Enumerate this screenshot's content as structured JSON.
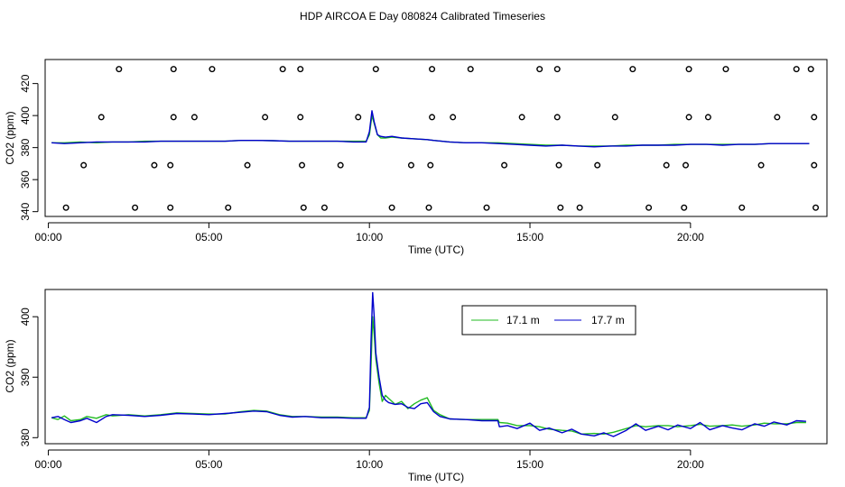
{
  "figure": {
    "title": "HDP AIRCOA E  Day 080824  Calibrated Timeseries"
  },
  "colors": {
    "series_17_1": "#22bb22",
    "series_17_7": "#0000cc",
    "axis": "#000000"
  },
  "chart_data": [
    {
      "type": "line",
      "panel": "top",
      "xlabel": "Time (UTC)",
      "ylabel": "CO2 (ppm)",
      "xlim": [
        -0.1,
        24.25
      ],
      "ylim": [
        337,
        435
      ],
      "xticks": [
        0,
        5,
        10,
        15,
        20
      ],
      "xtick_labels": [
        "00:00",
        "05:00",
        "10:00",
        "15:00",
        "20:00"
      ],
      "yticks": [
        340,
        360,
        380,
        400,
        420
      ],
      "ytick_labels": [
        "340",
        "360",
        "380",
        "400",
        "420"
      ],
      "legend": "none",
      "series": [
        {
          "color": "#22bb22",
          "x": [
            0.1,
            0.5,
            1.0,
            1.5,
            2.0,
            2.5,
            3.0,
            3.5,
            4.0,
            4.5,
            5.0,
            5.5,
            6.0,
            6.5,
            7.0,
            7.5,
            8.0,
            8.5,
            9.0,
            9.5,
            9.9,
            10.0,
            10.08,
            10.15,
            10.25,
            10.35,
            10.5,
            10.7,
            11.0,
            11.4,
            11.8,
            12.0,
            12.5,
            13.0,
            13.5,
            14.0,
            14.5,
            15.0,
            15.5,
            16.0,
            16.5,
            17.0,
            17.5,
            18.0,
            18.5,
            19.0,
            19.5,
            20.0,
            20.5,
            21.0,
            21.5,
            22.0,
            22.5,
            23.0,
            23.5,
            23.7
          ],
          "y": [
            383,
            383,
            383.5,
            383,
            383.5,
            383.5,
            384,
            384,
            384,
            384,
            384,
            384,
            384.5,
            384.5,
            384.3,
            384,
            384,
            384,
            384,
            384,
            384,
            388,
            400,
            395,
            388,
            386,
            386,
            386.5,
            386,
            385.5,
            385,
            384.5,
            383.5,
            383,
            383,
            383,
            382.5,
            382,
            381.5,
            381.5,
            381,
            381,
            381,
            381.5,
            381.5,
            381.5,
            382,
            382,
            382,
            382,
            382,
            382,
            382.5,
            382.5,
            382.5,
            382.5
          ]
        },
        {
          "color": "#0000cc",
          "x": [
            0.1,
            0.5,
            1.0,
            1.5,
            2.0,
            2.5,
            3.0,
            3.5,
            4.0,
            4.5,
            5.0,
            5.5,
            6.0,
            6.5,
            7.0,
            7.5,
            8.0,
            8.5,
            9.0,
            9.5,
            9.9,
            10.0,
            10.08,
            10.15,
            10.25,
            10.35,
            10.5,
            10.7,
            11.0,
            11.4,
            11.8,
            12.0,
            12.5,
            13.0,
            13.5,
            14.0,
            14.5,
            15.0,
            15.5,
            16.0,
            16.5,
            17.0,
            17.5,
            18.0,
            18.5,
            19.0,
            19.5,
            20.0,
            20.5,
            21.0,
            21.5,
            22.0,
            22.5,
            23.0,
            23.5,
            23.7
          ],
          "y": [
            383,
            382.5,
            383,
            383.5,
            383.5,
            383.5,
            383.5,
            384,
            384,
            384,
            384,
            384,
            384.5,
            384.5,
            384.3,
            384,
            384,
            384,
            384,
            383.5,
            383.5,
            390,
            403,
            396,
            388,
            387,
            386.5,
            387,
            386,
            385.5,
            385,
            384.5,
            383.5,
            383,
            383,
            382.5,
            382,
            381.5,
            381,
            381.5,
            381,
            380.5,
            381,
            381,
            381.5,
            381.5,
            381.5,
            382,
            382,
            381.5,
            382,
            382,
            382.5,
            382.5,
            382.5,
            382.5
          ]
        }
      ],
      "calibration_points": {
        "x": [
          2.2,
          3.9,
          5.1,
          7.3,
          7.85,
          10.2,
          11.95,
          13.15,
          15.3,
          15.85,
          18.2,
          19.95,
          21.1,
          23.3,
          23.75,
          1.65,
          3.9,
          4.55,
          6.75,
          7.85,
          9.65,
          11.95,
          12.6,
          14.75,
          15.85,
          17.65,
          19.95,
          20.55,
          22.7,
          23.85,
          1.1,
          3.3,
          3.8,
          6.2,
          7.9,
          9.1,
          11.3,
          11.9,
          14.2,
          15.9,
          17.1,
          19.25,
          19.85,
          22.2,
          23.85,
          0.55,
          2.7,
          3.8,
          5.6,
          7.95,
          8.6,
          10.7,
          11.85,
          13.65,
          15.95,
          16.55,
          18.7,
          19.8,
          21.6,
          23.9
        ],
        "y": [
          429,
          429,
          429,
          429,
          429,
          429,
          429,
          429,
          429,
          429,
          429,
          429,
          429,
          429,
          429,
          399,
          399,
          399,
          399,
          399,
          399,
          399,
          399,
          399,
          399,
          399,
          399,
          399,
          399,
          399,
          369,
          369,
          369,
          369,
          369,
          369,
          369,
          369,
          369,
          369,
          369,
          369,
          369,
          369,
          369,
          342.5,
          342.5,
          342.5,
          342.5,
          342.5,
          342.5,
          342.5,
          342.5,
          342.5,
          342.5,
          342.5,
          342.5,
          342.5,
          342.5,
          342.5
        ]
      }
    },
    {
      "type": "line",
      "panel": "bottom",
      "xlabel": "Time (UTC)",
      "ylabel": "CO2 (ppm)",
      "xlim": [
        -0.1,
        24.25
      ],
      "ylim": [
        379,
        404.5
      ],
      "xticks": [
        0,
        5,
        10,
        15,
        20
      ],
      "xtick_labels": [
        "00:00",
        "05:00",
        "10:00",
        "15:00",
        "20:00"
      ],
      "yticks": [
        380,
        390,
        400
      ],
      "ytick_labels": [
        "380",
        "390",
        "400"
      ],
      "legend": "top-center",
      "series": [
        {
          "name": "17.1 m",
          "color": "#22bb22",
          "x": [
            0.1,
            0.3,
            0.5,
            0.7,
            1.0,
            1.2,
            1.5,
            1.8,
            2.0,
            2.5,
            3.0,
            3.5,
            4.0,
            4.5,
            5.0,
            5.5,
            6.0,
            6.4,
            6.8,
            7.2,
            7.6,
            8.0,
            8.5,
            9.0,
            9.5,
            9.9,
            10.0,
            10.05,
            10.1,
            10.15,
            10.2,
            10.3,
            10.4,
            10.5,
            10.6,
            10.8,
            11.0,
            11.2,
            11.4,
            11.6,
            11.8,
            12.0,
            12.2,
            12.5,
            13.0,
            13.5,
            14.0,
            14.05,
            14.3,
            14.6,
            15.0,
            15.3,
            15.6,
            16.0,
            16.3,
            16.6,
            17.0,
            17.3,
            17.6,
            18.0,
            18.3,
            18.6,
            19.0,
            19.3,
            19.6,
            20.0,
            20.3,
            20.6,
            21.0,
            21.3,
            21.6,
            22.0,
            22.3,
            22.6,
            23.0,
            23.3,
            23.6
          ],
          "y": [
            383.3,
            383.0,
            383.6,
            382.8,
            383.0,
            383.5,
            383.2,
            383.8,
            383.6,
            383.8,
            383.6,
            383.8,
            384.1,
            384.0,
            383.9,
            383.9,
            384.3,
            384.5,
            384.4,
            383.8,
            383.5,
            383.5,
            383.4,
            383.4,
            383.3,
            383.3,
            384.5,
            392,
            400,
            397,
            393,
            389,
            386,
            387,
            386.5,
            385.5,
            386,
            384.8,
            385.6,
            386.2,
            386.6,
            384.5,
            383.8,
            383.1,
            383.0,
            383.0,
            383.0,
            382.5,
            382.4,
            382.0,
            382.0,
            381.8,
            381.4,
            381.2,
            381.1,
            380.6,
            380.7,
            380.6,
            380.9,
            381.5,
            382.0,
            381.8,
            382.0,
            382.0,
            381.8,
            382.0,
            382.2,
            381.9,
            382.0,
            382.1,
            381.9,
            382.1,
            382.4,
            382.3,
            382.3,
            382.5,
            382.5
          ]
        },
        {
          "name": "17.7 m",
          "color": "#0000cc",
          "x": [
            0.1,
            0.3,
            0.5,
            0.7,
            1.0,
            1.2,
            1.5,
            1.8,
            2.0,
            2.5,
            3.0,
            3.5,
            4.0,
            4.5,
            5.0,
            5.5,
            6.0,
            6.4,
            6.8,
            7.2,
            7.6,
            8.0,
            8.5,
            9.0,
            9.5,
            9.9,
            10.0,
            10.05,
            10.1,
            10.15,
            10.2,
            10.3,
            10.4,
            10.5,
            10.6,
            10.8,
            11.0,
            11.2,
            11.4,
            11.6,
            11.8,
            12.0,
            12.2,
            12.5,
            13.0,
            13.5,
            14.0,
            14.05,
            14.3,
            14.6,
            15.0,
            15.3,
            15.6,
            16.0,
            16.3,
            16.6,
            17.0,
            17.3,
            17.6,
            18.0,
            18.3,
            18.6,
            19.0,
            19.3,
            19.6,
            20.0,
            20.3,
            20.6,
            21.0,
            21.3,
            21.6,
            22.0,
            22.3,
            22.6,
            23.0,
            23.3,
            23.6
          ],
          "y": [
            383.3,
            383.5,
            383.0,
            382.5,
            382.8,
            383.2,
            382.5,
            383.5,
            383.8,
            383.7,
            383.5,
            383.7,
            384.0,
            383.9,
            383.8,
            384.0,
            384.2,
            384.4,
            384.3,
            383.7,
            383.4,
            383.5,
            383.3,
            383.3,
            383.2,
            383.2,
            385,
            396,
            404,
            400,
            394,
            390,
            387,
            386.2,
            385.8,
            385.5,
            385.6,
            385.0,
            384.8,
            385.6,
            385.8,
            384.3,
            383.5,
            383.1,
            383.0,
            382.8,
            382.8,
            381.8,
            382.0,
            381.5,
            382.4,
            381.2,
            381.6,
            380.8,
            381.4,
            380.6,
            380.3,
            380.8,
            380.2,
            381.2,
            382.3,
            381.2,
            381.9,
            381.3,
            382.1,
            381.5,
            382.5,
            381.3,
            382.0,
            381.6,
            381.3,
            382.3,
            381.9,
            382.6,
            382.1,
            382.8,
            382.7
          ]
        }
      ]
    }
  ]
}
